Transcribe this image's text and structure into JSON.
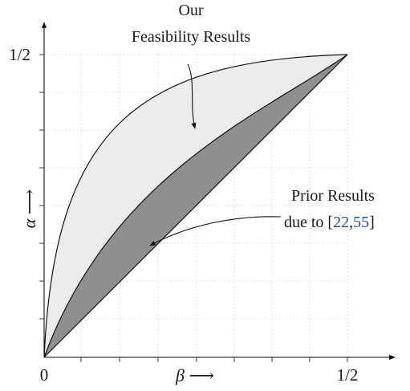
{
  "axes": {
    "x_label": "β ⟶",
    "y_label": "α ⟶",
    "x_ticks": [
      "0",
      "1/2"
    ],
    "y_ticks": [
      "1/2"
    ]
  },
  "annotations": {
    "our": {
      "line1": "Our",
      "line2": "Feasibility Results"
    },
    "prior": {
      "line1": "Prior Results",
      "line2_prefix": "due to [",
      "cite_a": "22",
      "cite_sep": ",",
      "cite_b": "55",
      "cite_suffix": "]"
    }
  },
  "regions": {
    "our_feasibility_color": "#ececec",
    "prior_results_color": "#8f8f8f",
    "citation_color": "#2a4a9a"
  }
}
